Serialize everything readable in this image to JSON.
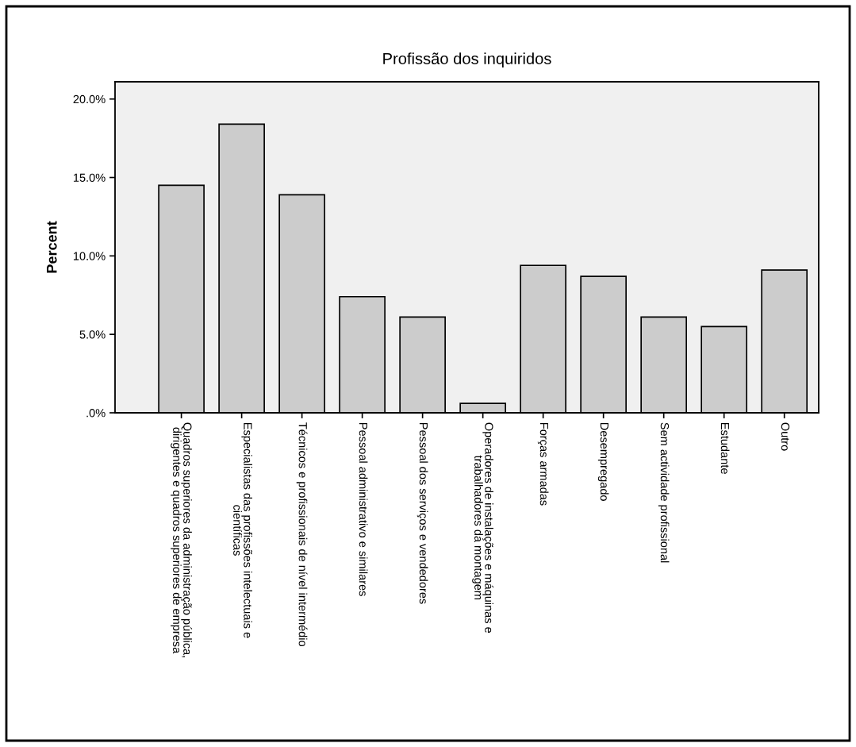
{
  "chart_data": {
    "type": "bar",
    "title": "Profissão dos inquiridos",
    "ylabel": "Percent",
    "categories": [
      "Quadros superiores da administração pública,\ndirigentes e quadros superiores de empresa",
      "Especialistas das profissões intelectuais e\ncientíficas",
      "Técnicos e profissionais de nível intermédio",
      "Pessoal administrativo e similares",
      "Pessoal dos serviços e vendedores",
      "Operadores de instalações e máquinas e\ntrabalhadores da montagem",
      "Forças armadas",
      "Desempregado",
      "Sem actividade profissional",
      "Estudante",
      "Outro"
    ],
    "values": [
      14.5,
      18.4,
      13.9,
      7.4,
      6.1,
      0.6,
      9.4,
      8.7,
      6.1,
      5.5,
      9.1
    ],
    "color": "#cccccc",
    "ylim": [
      0,
      21.1
    ],
    "yticks": [
      {
        "value": 0,
        "label": ".0%"
      },
      {
        "value": 5,
        "label": "5.0%"
      },
      {
        "value": 10,
        "label": "10.0%"
      },
      {
        "value": 15,
        "label": "15.0%"
      },
      {
        "value": 20,
        "label": "20.0%"
      }
    ],
    "grid": false,
    "legend": false
  }
}
